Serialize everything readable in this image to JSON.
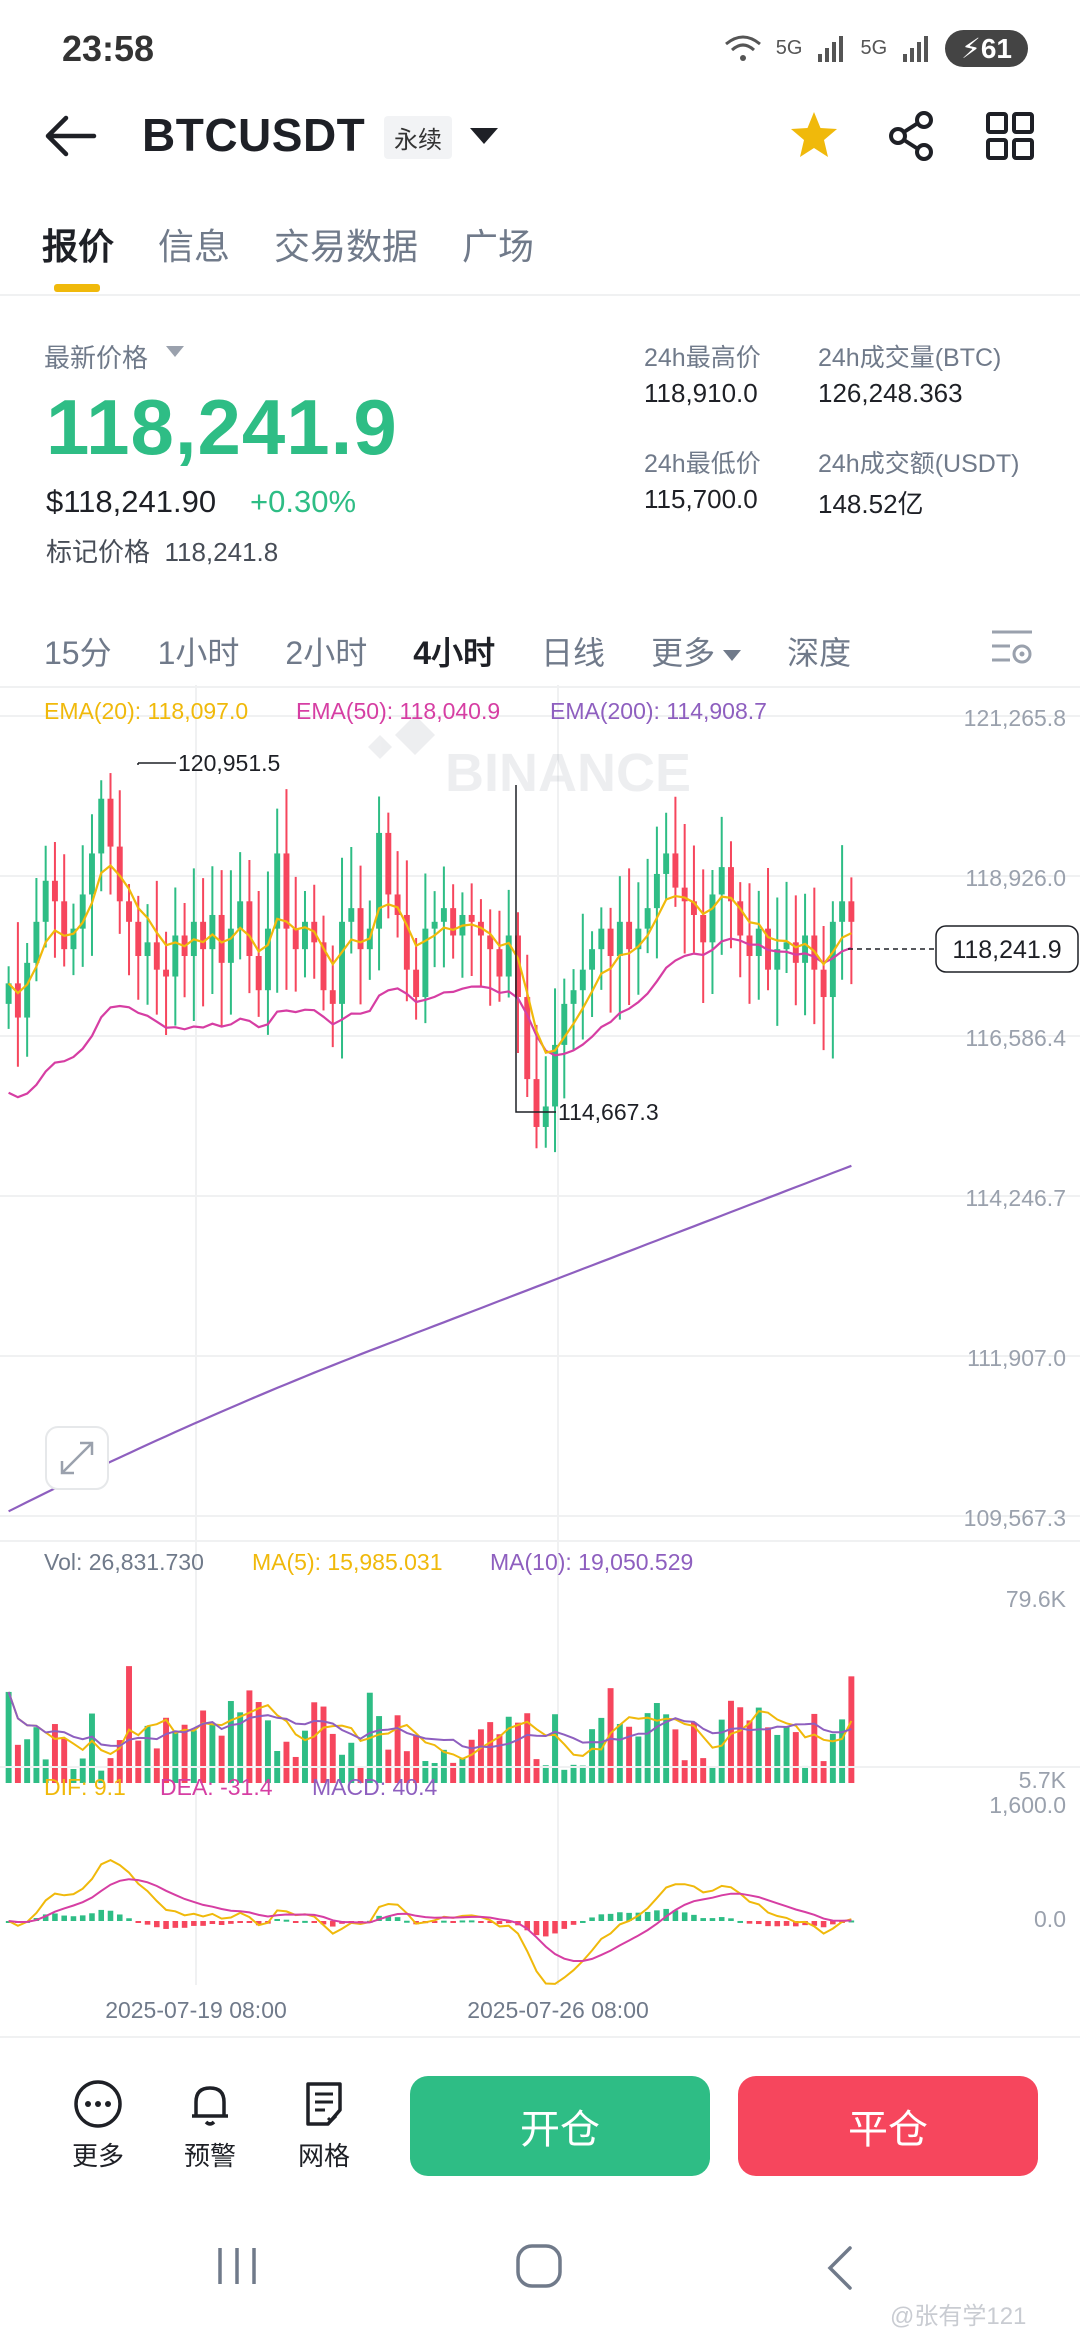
{
  "status_bar": {
    "time": "23:58",
    "battery": "61",
    "net1": "5G",
    "net2": "5G"
  },
  "header": {
    "symbol": "BTCUSDT",
    "tag": "永续"
  },
  "tabs": [
    "报价",
    "信息",
    "交易数据",
    "广场"
  ],
  "price": {
    "last_label": "最新价格",
    "last_price": "118,241.9",
    "usd_price": "$118,241.90",
    "change": "+0.30%",
    "mark_label": "标记价格",
    "mark_price": "118,241.8"
  },
  "stats": {
    "high_label": "24h最高价",
    "high": "118,910.0",
    "vol_btc_label": "24h成交量(BTC)",
    "vol_btc": "126,248.363",
    "low_label": "24h最低价",
    "low": "115,700.0",
    "vol_usdt_label": "24h成交额(USDT)",
    "vol_usdt": "148.52亿"
  },
  "intervals": [
    "15分",
    "1小时",
    "2小时",
    "4小时",
    "日线",
    "更多",
    "深度"
  ],
  "chart_data": {
    "type": "candlestick",
    "indicators": {
      "ema20": "EMA(20): 118,097.0",
      "ema50": "EMA(50): 118,040.9",
      "ema200": "EMA(200): 114,908.7"
    },
    "price_axis": [
      "121,265.8",
      "118,926.0",
      "116,586.4",
      "114,246.7",
      "111,907.0",
      "109,567.3"
    ],
    "ylim": [
      109567.3,
      121265.8
    ],
    "current_price": "118,241.9",
    "high_marker": "120,951.5",
    "low_marker": "114,667.3",
    "volume": {
      "vol": "Vol: 26,831.730",
      "ma5": "MA(5): 15,985.031",
      "ma10": "MA(10): 19,050.529",
      "axis": [
        "79.6K",
        "5.7K"
      ]
    },
    "macd": {
      "dif": "DIF: 9.1",
      "dea": "DEA: -31.4",
      "macd": "MACD: 40.4",
      "axis": [
        "1,600.0",
        "0.0"
      ]
    },
    "x_labels": [
      "2025-07-19 08:00",
      "2025-07-26 08:00"
    ],
    "colors": {
      "up": "#2ebd85",
      "down": "#f6465d",
      "ema20": "#f0b90b",
      "ema50": "#d63ea3",
      "ema200": "#8e5fbf",
      "grid": "#f0f1f2"
    },
    "closes": [
      117400,
      116900,
      117700,
      118300,
      118900,
      118600,
      117900,
      118200,
      118700,
      119300,
      120100,
      119400,
      118600,
      118300,
      117800,
      118000,
      117600,
      117500,
      118100,
      117800,
      118300,
      117900,
      118400,
      117700,
      118200,
      118600,
      117800,
      117300,
      118200,
      119300,
      118200,
      117900,
      118300,
      118000,
      117300,
      117100,
      118300,
      118500,
      117900,
      118200,
      119600,
      118700,
      118400,
      117600,
      117200,
      118200,
      118300,
      118500,
      118100,
      118400,
      118300,
      118100,
      117900,
      117500,
      118100,
      117200,
      116000,
      115300,
      115600,
      116500,
      117100,
      117300,
      117600,
      117900,
      118200,
      117800,
      118300,
      117900,
      118200,
      118500,
      119000,
      119300,
      118800,
      118600,
      118400,
      118000,
      118700,
      119100,
      118600,
      118100,
      117800,
      118200,
      117600,
      117900,
      118000,
      117700,
      118100,
      117600,
      117200,
      118300,
      118600,
      118300
    ]
  },
  "actions": {
    "more": "更多",
    "alert": "预警",
    "grid": "网格",
    "open": "开仓",
    "close": "平仓"
  },
  "watermark": "@张有学121"
}
